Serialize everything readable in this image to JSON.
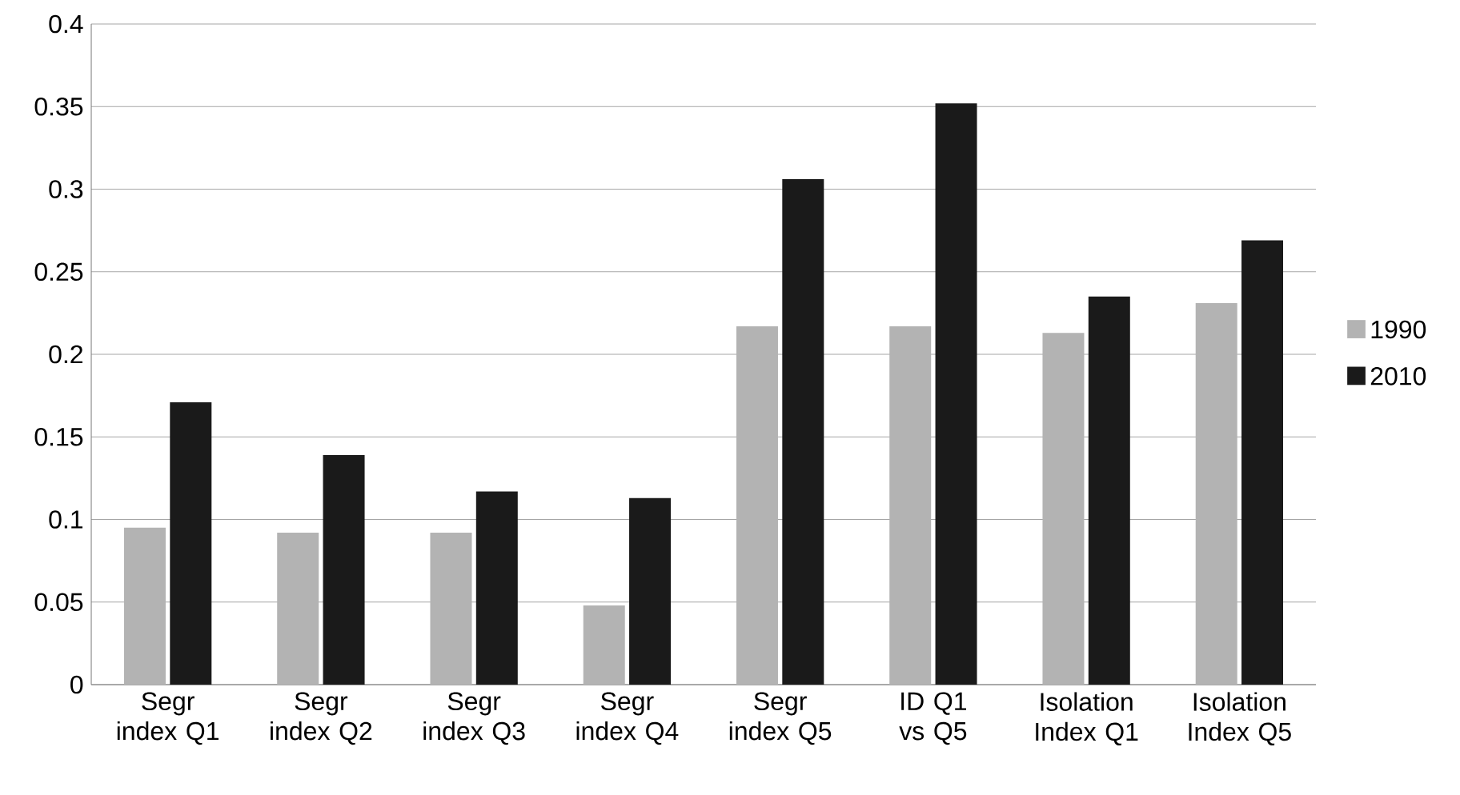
{
  "chart_data": {
    "type": "bar",
    "categories": [
      "Segr index Q1",
      "Segr index Q2",
      "Segr index Q3",
      "Segr index Q4",
      "Segr index Q5",
      "ID Q1 vs Q5",
      "Isolation Index Q1",
      "Isolation Index Q5"
    ],
    "series": [
      {
        "name": "1990",
        "color": "#b3b3b3",
        "values": [
          0.095,
          0.092,
          0.092,
          0.048,
          0.217,
          0.217,
          0.213,
          0.231
        ]
      },
      {
        "name": "2010",
        "color": "#1a1a1a",
        "values": [
          0.171,
          0.139,
          0.117,
          0.113,
          0.306,
          0.352,
          0.235,
          0.269
        ]
      }
    ],
    "ylim": [
      0,
      0.4
    ],
    "yticks": [
      0,
      0.05,
      0.1,
      0.15,
      0.2,
      0.25,
      0.3,
      0.35,
      0.4
    ],
    "grid": "y",
    "legend": "right"
  }
}
